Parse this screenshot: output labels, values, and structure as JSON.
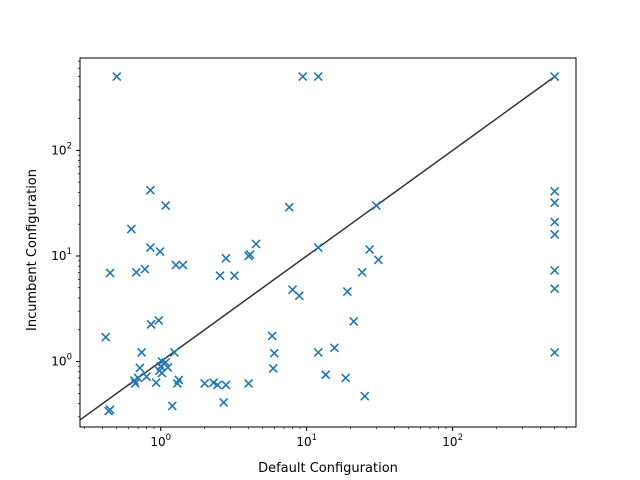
{
  "colors": {
    "background": "#ffffff",
    "axes": "#000000",
    "series": "#1f77b4",
    "diagonal": "#333333"
  },
  "chart_data": {
    "type": "scatter",
    "title": "",
    "xlabel": "Default Configuration",
    "ylabel": "Incumbent Configuration",
    "xscale": "log",
    "yscale": "log",
    "xlim": [
      0.28,
      700
    ],
    "ylim": [
      0.24,
      750
    ],
    "grid": false,
    "legend": "none",
    "marker": "x",
    "x_ticks": [
      {
        "value": 1,
        "base": "10",
        "exp": "0"
      },
      {
        "value": 10,
        "base": "10",
        "exp": "1"
      },
      {
        "value": 100,
        "base": "10",
        "exp": "2"
      }
    ],
    "y_ticks": [
      {
        "value": 1,
        "base": "10",
        "exp": "0"
      },
      {
        "value": 10,
        "base": "10",
        "exp": "1"
      },
      {
        "value": 100,
        "base": "10",
        "exp": "2"
      }
    ],
    "reference_line": {
      "kind": "y=x",
      "from": 0.28,
      "to": 500
    },
    "series": [
      {
        "values": [
          {
            "x": 0.5,
            "y": 500
          },
          {
            "x": 9.4,
            "y": 500
          },
          {
            "x": 12,
            "y": 500
          },
          {
            "x": 500,
            "y": 500
          },
          {
            "x": 0.85,
            "y": 42
          },
          {
            "x": 1.08,
            "y": 30
          },
          {
            "x": 7.6,
            "y": 29
          },
          {
            "x": 30,
            "y": 30
          },
          {
            "x": 0.63,
            "y": 18
          },
          {
            "x": 0.85,
            "y": 12
          },
          {
            "x": 0.99,
            "y": 11
          },
          {
            "x": 4.5,
            "y": 13
          },
          {
            "x": 12,
            "y": 12
          },
          {
            "x": 27,
            "y": 11.5
          },
          {
            "x": 31,
            "y": 9.2
          },
          {
            "x": 4.0,
            "y": 10
          },
          {
            "x": 4.1,
            "y": 10.3
          },
          {
            "x": 2.8,
            "y": 9.5
          },
          {
            "x": 1.27,
            "y": 8.2
          },
          {
            "x": 1.42,
            "y": 8.2
          },
          {
            "x": 0.45,
            "y": 6.9
          },
          {
            "x": 0.68,
            "y": 7.0
          },
          {
            "x": 0.78,
            "y": 7.5
          },
          {
            "x": 2.55,
            "y": 6.5
          },
          {
            "x": 3.2,
            "y": 6.5
          },
          {
            "x": 24,
            "y": 7.0
          },
          {
            "x": 8.0,
            "y": 4.8
          },
          {
            "x": 8.9,
            "y": 4.2
          },
          {
            "x": 19,
            "y": 4.6
          },
          {
            "x": 0.86,
            "y": 2.25
          },
          {
            "x": 0.97,
            "y": 2.45
          },
          {
            "x": 21,
            "y": 2.4
          },
          {
            "x": 0.42,
            "y": 1.7
          },
          {
            "x": 5.8,
            "y": 1.75
          },
          {
            "x": 0.74,
            "y": 1.22
          },
          {
            "x": 1.24,
            "y": 1.22
          },
          {
            "x": 6.0,
            "y": 1.2
          },
          {
            "x": 12,
            "y": 1.22
          },
          {
            "x": 15.5,
            "y": 1.35
          },
          {
            "x": 0.72,
            "y": 0.87
          },
          {
            "x": 0.98,
            "y": 0.82
          },
          {
            "x": 1.0,
            "y": 0.9
          },
          {
            "x": 1.02,
            "y": 1.0
          },
          {
            "x": 1.08,
            "y": 0.98
          },
          {
            "x": 1.12,
            "y": 0.88
          },
          {
            "x": 0.66,
            "y": 0.66
          },
          {
            "x": 0.67,
            "y": 0.62
          },
          {
            "x": 0.7,
            "y": 0.7
          },
          {
            "x": 0.8,
            "y": 0.72
          },
          {
            "x": 0.93,
            "y": 0.63
          },
          {
            "x": 1.02,
            "y": 0.78
          },
          {
            "x": 1.3,
            "y": 0.62
          },
          {
            "x": 1.33,
            "y": 0.67
          },
          {
            "x": 5.9,
            "y": 0.86
          },
          {
            "x": 13.5,
            "y": 0.75
          },
          {
            "x": 2.0,
            "y": 0.62
          },
          {
            "x": 2.3,
            "y": 0.63
          },
          {
            "x": 2.45,
            "y": 0.6
          },
          {
            "x": 2.8,
            "y": 0.6
          },
          {
            "x": 4.0,
            "y": 0.62
          },
          {
            "x": 18.5,
            "y": 0.7
          },
          {
            "x": 2.7,
            "y": 0.41
          },
          {
            "x": 1.2,
            "y": 0.38
          },
          {
            "x": 25,
            "y": 0.47
          },
          {
            "x": 0.44,
            "y": 0.34
          },
          {
            "x": 0.45,
            "y": 0.35
          },
          {
            "x": 500,
            "y": 41
          },
          {
            "x": 500,
            "y": 32
          },
          {
            "x": 500,
            "y": 21
          },
          {
            "x": 500,
            "y": 16
          },
          {
            "x": 500,
            "y": 7.3
          },
          {
            "x": 500,
            "y": 4.9
          },
          {
            "x": 500,
            "y": 1.22
          }
        ]
      }
    ]
  }
}
